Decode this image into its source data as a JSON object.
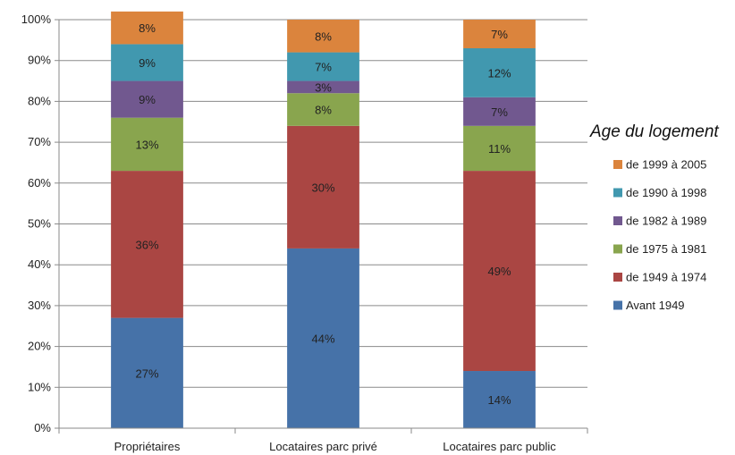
{
  "chart_data": {
    "type": "bar",
    "stacked": true,
    "categories": [
      "Propriétaires",
      "Locataires parc privé",
      "Locataires parc public"
    ],
    "series": [
      {
        "name": "Avant 1949",
        "color": "#4672A8",
        "values": [
          27,
          44,
          14
        ]
      },
      {
        "name": "de 1949 à 1974",
        "color": "#AA4643",
        "values": [
          36,
          30,
          49
        ]
      },
      {
        "name": "de 1975 à 1981",
        "color": "#89A54E",
        "values": [
          13,
          8,
          11
        ]
      },
      {
        "name": "de 1982 à 1989",
        "color": "#71588F",
        "values": [
          9,
          3,
          7
        ]
      },
      {
        "name": "de 1990 à 1998",
        "color": "#4198AF",
        "values": [
          9,
          7,
          12
        ]
      },
      {
        "name": "de 1999 à 2005",
        "color": "#DB843D",
        "values": [
          8,
          8,
          7
        ]
      }
    ],
    "y_ticks": [
      "0%",
      "10%",
      "20%",
      "30%",
      "40%",
      "50%",
      "60%",
      "70%",
      "80%",
      "90%",
      "100%"
    ],
    "ylim": [
      0,
      100
    ],
    "legend_title": "Age du logement",
    "legend_position": "right",
    "grid": true
  }
}
